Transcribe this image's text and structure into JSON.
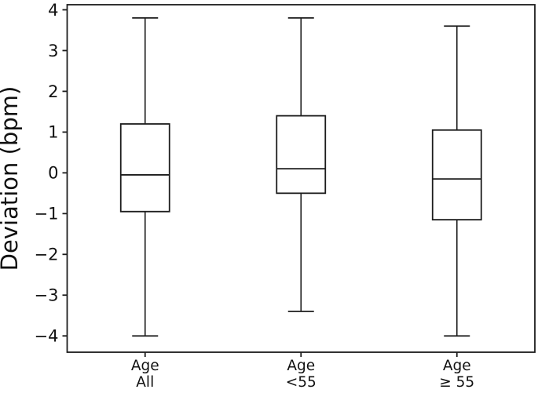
{
  "figure": {
    "background": "#ffffff",
    "line_color": "#1c1c1c",
    "text_color": "#111111"
  },
  "chart_data": {
    "type": "boxplot",
    "title": "",
    "xlabel": "",
    "ylabel": "Deviation (bpm)",
    "ylim": [
      -4.4,
      4.125
    ],
    "yticks": [
      4,
      3,
      2,
      1,
      0,
      -1,
      -2,
      -3,
      -4
    ],
    "ytick_labels": [
      "4",
      "3",
      "2",
      "1",
      "0",
      "−1",
      "−2",
      "−3",
      "−4"
    ],
    "grid": false,
    "legend": false,
    "categories": [
      "Age\nAll",
      "Age\n<55",
      "Age\n≥ 55"
    ],
    "series": [
      {
        "label": "Age All",
        "whisker_low": -4.0,
        "q1": -0.95,
        "median": -0.05,
        "q3": 1.2,
        "whisker_high": 3.8
      },
      {
        "label": "Age <55",
        "whisker_low": -3.4,
        "q1": -0.5,
        "median": 0.1,
        "q3": 1.4,
        "whisker_high": 3.8
      },
      {
        "label": "Age ≥ 55",
        "whisker_low": -4.0,
        "q1": -1.15,
        "median": -0.15,
        "q3": 1.05,
        "whisker_high": 3.6
      }
    ]
  }
}
